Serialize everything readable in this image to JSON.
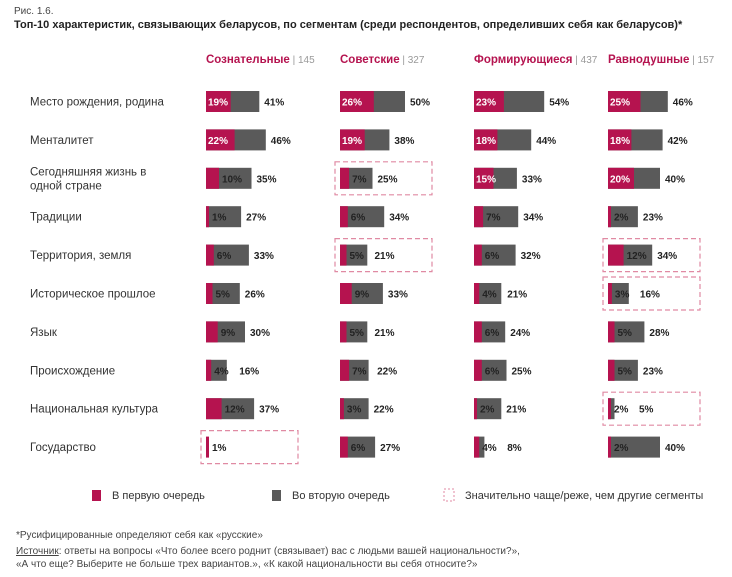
{
  "figure": {
    "label": "Рис. 1.6.",
    "title": "Топ-10 характеристик, связывающих беларусов, по сегментам (среди респондентов, определивших себя как беларусов)*"
  },
  "footnotes": {
    "asterisk": "*Русифицированные определяют себя как «русские»",
    "source_label": "Источник",
    "source_line1": ": ответы на вопросы «Что более всего роднит (связывает) вас с людьми вашей национальности?»,",
    "source_line2": "«А что еще? Выберите не больше трех вариантов.», «К какой национальности вы себя относите?»"
  },
  "colors": {
    "first": "#b5134f",
    "second": "#5a5a5a",
    "highlight_border": "#e08aa3"
  },
  "chart_data": {
    "type": "bar",
    "orientation": "horizontal",
    "stacked": true,
    "categories": [
      "Место рождения, родина",
      "Менталитет",
      "Сегодняшняя жизнь в одной стране",
      "Традиции",
      "Территория, земля",
      "Историческое прошлое",
      "Язык",
      "Происхождение",
      "Национальная культура",
      "Государство"
    ],
    "legend": {
      "first": "В первую очередь",
      "second": "Во вторую очередь",
      "highlight": "Значительно чаще/реже, чем другие сегменты"
    },
    "segments": [
      {
        "name": "Сознательные",
        "n": "145",
        "first": [
          19,
          22,
          10,
          1,
          6,
          5,
          9,
          4,
          12,
          1
        ],
        "total": [
          41,
          46,
          35,
          27,
          33,
          26,
          30,
          16,
          37,
          null
        ],
        "highlight": [
          false,
          false,
          false,
          false,
          false,
          false,
          false,
          false,
          false,
          true
        ]
      },
      {
        "name": "Советские",
        "n": "327",
        "first": [
          26,
          19,
          7,
          6,
          5,
          9,
          5,
          7,
          3,
          6
        ],
        "total": [
          50,
          38,
          25,
          34,
          21,
          33,
          21,
          22,
          22,
          27
        ],
        "highlight": [
          false,
          false,
          true,
          false,
          true,
          false,
          false,
          false,
          false,
          false
        ]
      },
      {
        "name": "Формирующиеся",
        "n": "437",
        "first": [
          23,
          18,
          15,
          7,
          6,
          4,
          6,
          6,
          2,
          4
        ],
        "total": [
          54,
          44,
          33,
          34,
          32,
          21,
          24,
          25,
          21,
          8
        ],
        "highlight": [
          false,
          false,
          false,
          false,
          false,
          false,
          false,
          false,
          false,
          false
        ]
      },
      {
        "name": "Равнодушные",
        "n": "157",
        "first": [
          25,
          18,
          20,
          2,
          12,
          3,
          5,
          5,
          2,
          2
        ],
        "total": [
          46,
          42,
          40,
          23,
          34,
          16,
          28,
          23,
          5,
          40
        ],
        "highlight": [
          false,
          false,
          false,
          false,
          true,
          true,
          false,
          false,
          true,
          false
        ]
      }
    ]
  }
}
